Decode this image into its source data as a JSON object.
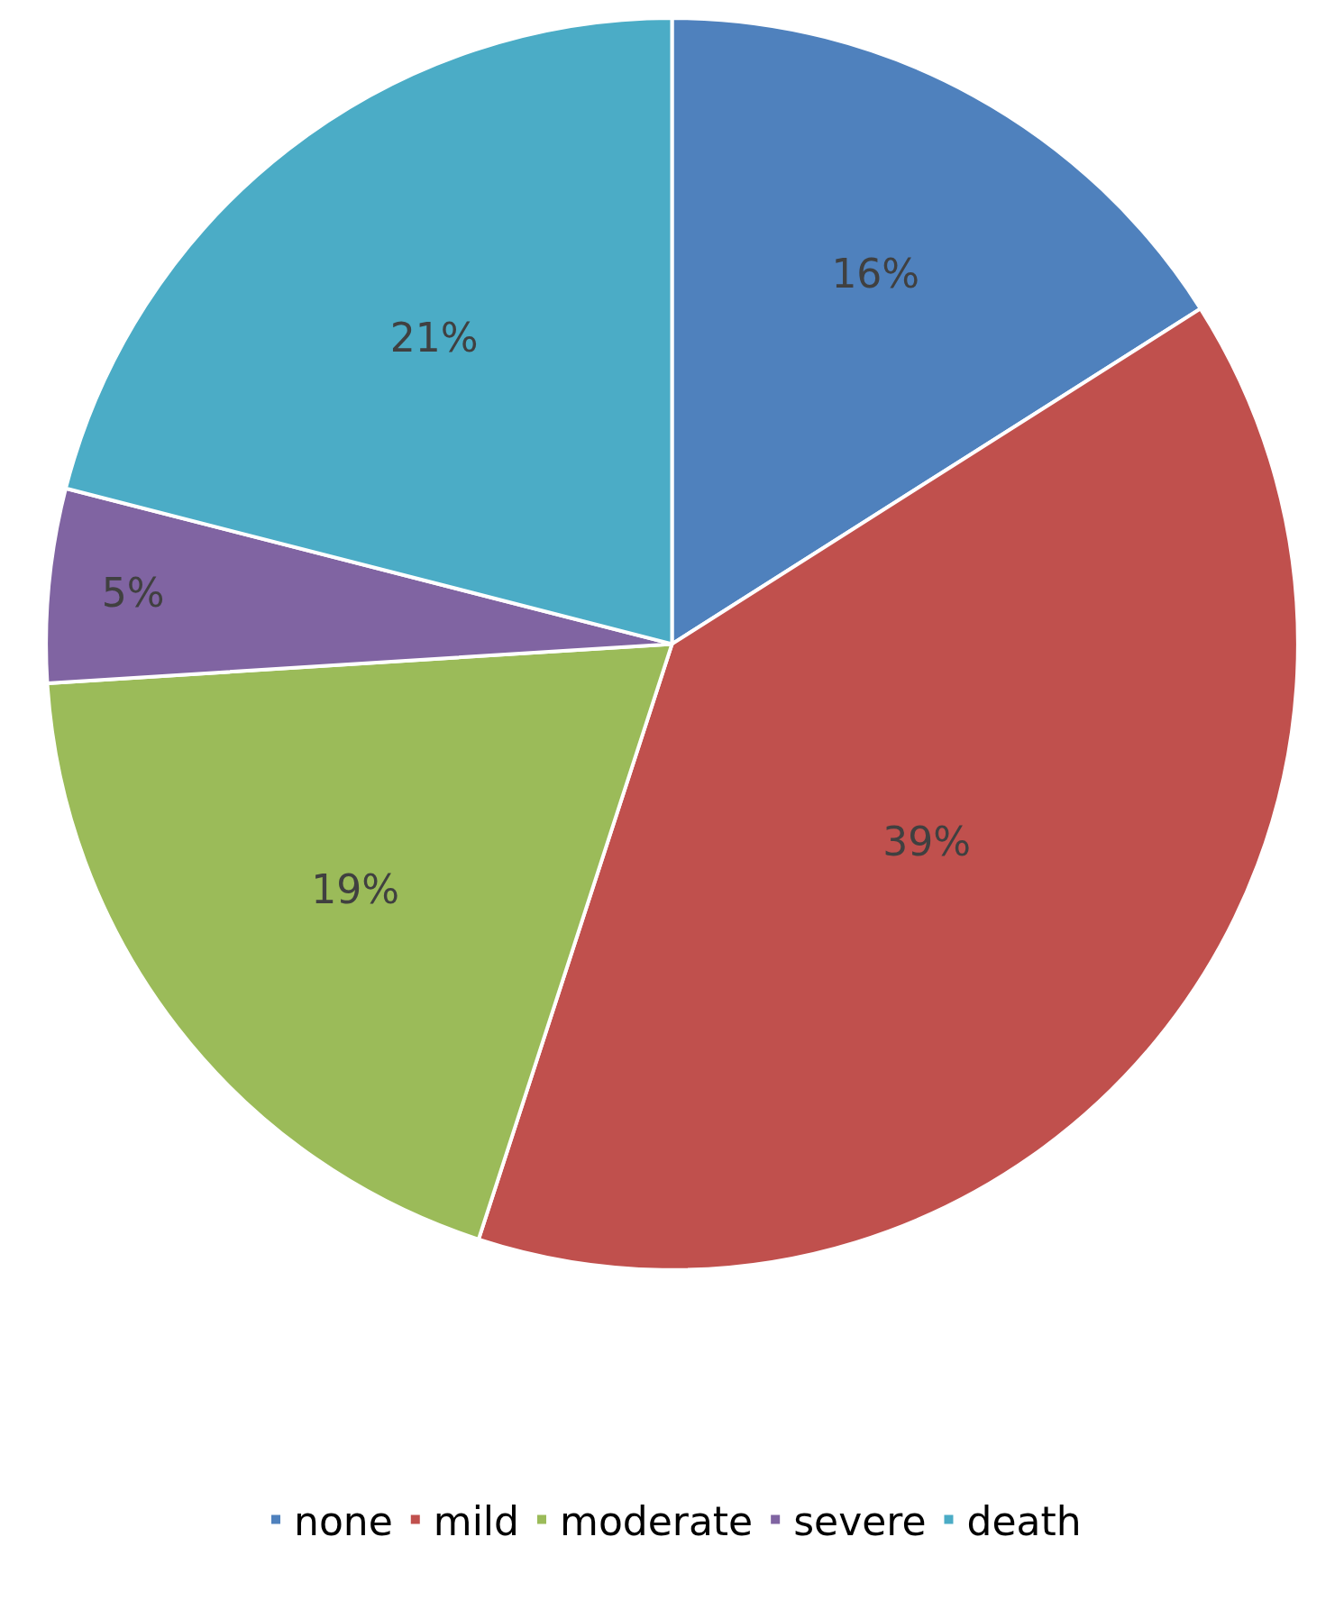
{
  "chart_data": {
    "type": "pie",
    "categories": [
      "none",
      "mild",
      "moderate",
      "severe",
      "death"
    ],
    "values": [
      16,
      39,
      19,
      5,
      21
    ],
    "value_labels": [
      "16%",
      "39%",
      "19%",
      "5%",
      "21%"
    ],
    "colors": [
      "#4f81bd",
      "#c0504d",
      "#9bbb59",
      "#8064a2",
      "#4bacc6"
    ],
    "legend": "bottom"
  }
}
